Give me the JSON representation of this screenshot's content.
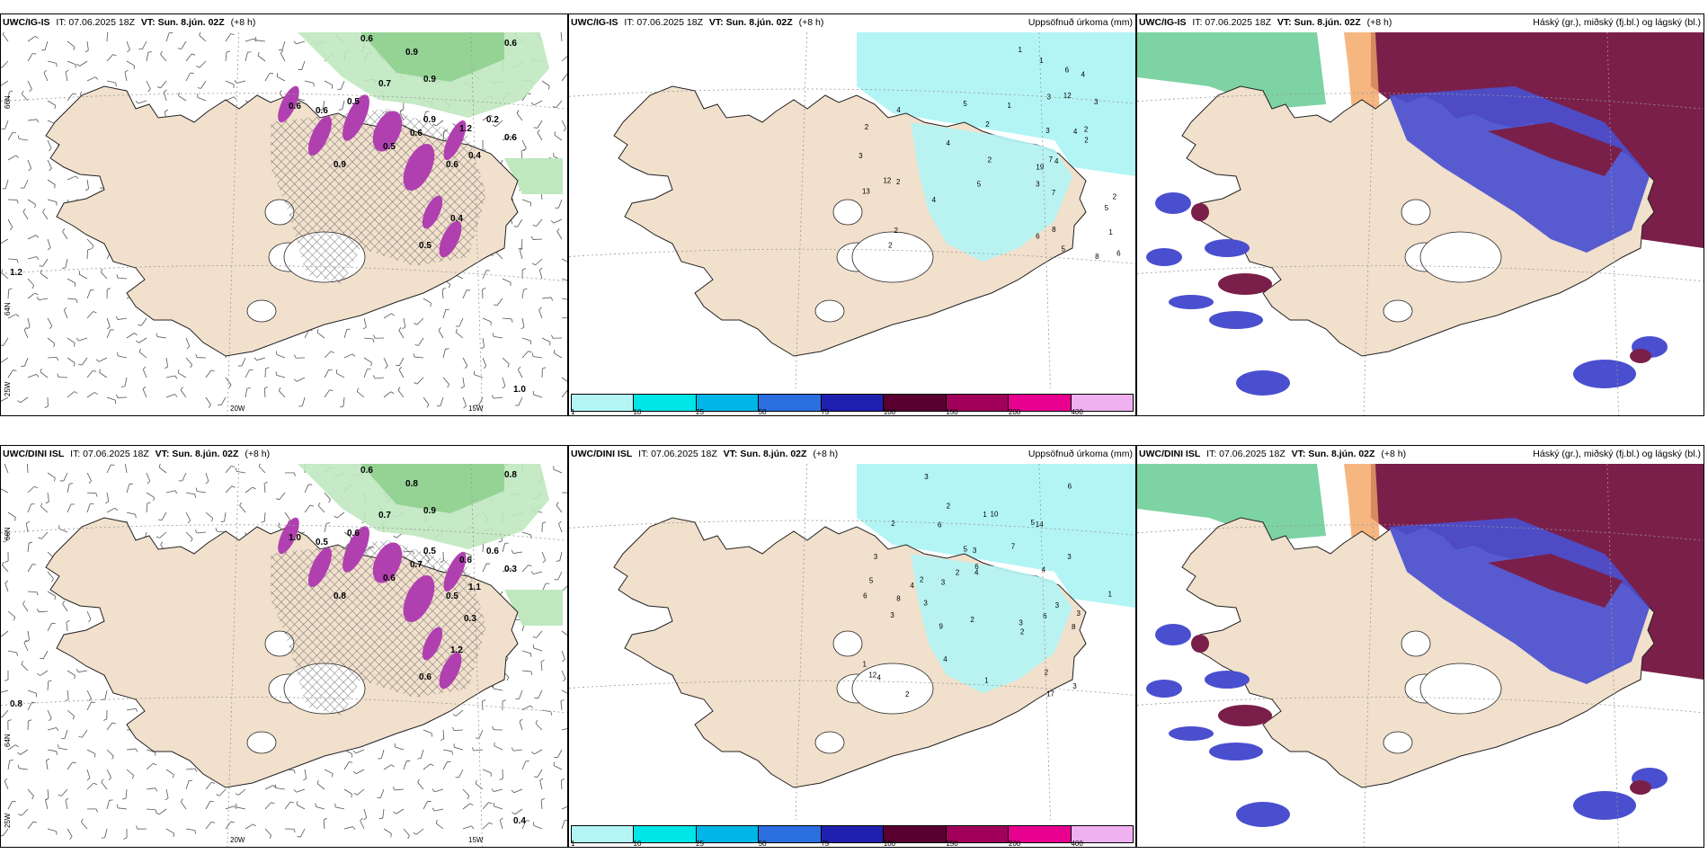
{
  "rows": [
    {
      "model": "UWC/IG-IS",
      "it_label": "IT: 07.06.2025 18Z",
      "vt_bold": "VT: Sun. 8.jún. 02Z",
      "lead": "(+8 h)",
      "panels": [
        {
          "type": "cloud-wind",
          "right_label": ""
        },
        {
          "type": "precip",
          "right_label": "Uppsöfnuð úrkoma (mm)"
        },
        {
          "type": "cloud-levels",
          "right_label": "Háský (gr.), miðský (fj.bl.) og lágský (bl.)"
        }
      ],
      "cloud_values": [
        "0.6",
        "0.9",
        "0.6",
        "0.7",
        "0.9",
        "0.6",
        "0.6",
        "0.5",
        "0.9",
        "1.2",
        "0.5",
        "0.6",
        "0.6",
        "0.9",
        "0.4",
        "0.2",
        "0.6",
        "0.4",
        "0.5",
        "1.2",
        "1.0"
      ],
      "precip_values": [
        "3",
        "2",
        "4",
        "5",
        "6",
        "12",
        "2",
        "2",
        "1",
        "5",
        "7",
        "19",
        "13",
        "7",
        "4",
        "8",
        "4",
        "12",
        "6",
        "5",
        "5",
        "3",
        "3",
        "1",
        "2",
        "2",
        "4",
        "3",
        "6",
        "2",
        "3",
        "1",
        "2",
        "8",
        "4",
        "2",
        "1",
        "2",
        "4"
      ]
    },
    {
      "model": "UWC/DINI ISL",
      "it_label": "IT: 07.06.2025 18Z",
      "vt_bold": "VT: Sun. 8.jún. 02Z",
      "lead": "(+8 h)",
      "panels": [
        {
          "type": "cloud-wind",
          "right_label": ""
        },
        {
          "type": "precip",
          "right_label": "Uppsöfnuð úrkoma (mm)"
        },
        {
          "type": "cloud-levels",
          "right_label": "Háský (gr.), miðský (fj.bl.) og lágský (bl.)"
        }
      ],
      "cloud_values": [
        "0.6",
        "0.8",
        "0.8",
        "0.7",
        "0.9",
        "1.0",
        "0.5",
        "0.6",
        "0.5",
        "0.6",
        "0.6",
        "0.7",
        "0.5",
        "0.8",
        "1.1",
        "0.6",
        "0.3",
        "1.2",
        "0.6",
        "0.8",
        "0.4",
        "0.3"
      ],
      "precip_values": [
        "4",
        "3",
        "2",
        "3",
        "3",
        "2",
        "4",
        "7",
        "17",
        "5",
        "12",
        "10",
        "6",
        "8",
        "3",
        "6",
        "3",
        "2",
        "3",
        "14",
        "6",
        "4",
        "2",
        "5",
        "1",
        "3",
        "2",
        "1",
        "2",
        "1",
        "6",
        "1",
        "2",
        "3",
        "2",
        "4",
        "4",
        "6",
        "8",
        "3",
        "5",
        "3",
        "9",
        "3"
      ]
    }
  ],
  "colorbar": {
    "colors": [
      "#b3f5f5",
      "#00e6e6",
      "#00b5e8",
      "#2a6ee0",
      "#2020b0",
      "#5a0030",
      "#a0005a",
      "#e80090",
      "#f0b0f0"
    ],
    "ticks": [
      "1",
      "10",
      "25",
      "50",
      "75",
      "100",
      "150",
      "200",
      "400"
    ]
  },
  "axes": {
    "lon_labels": [
      "20W",
      "15W"
    ],
    "lat_labels": [
      "66N",
      "64N",
      "25W"
    ]
  },
  "colors": {
    "land": "#f1e0cc",
    "ocean_cloud_green": "#7fc97f",
    "precip_cyan": "#b3f5f5",
    "high_cloud": "#7a1f4a",
    "mid_cloud": "#4a4fcf",
    "low_cloud": "#2a8a55"
  }
}
